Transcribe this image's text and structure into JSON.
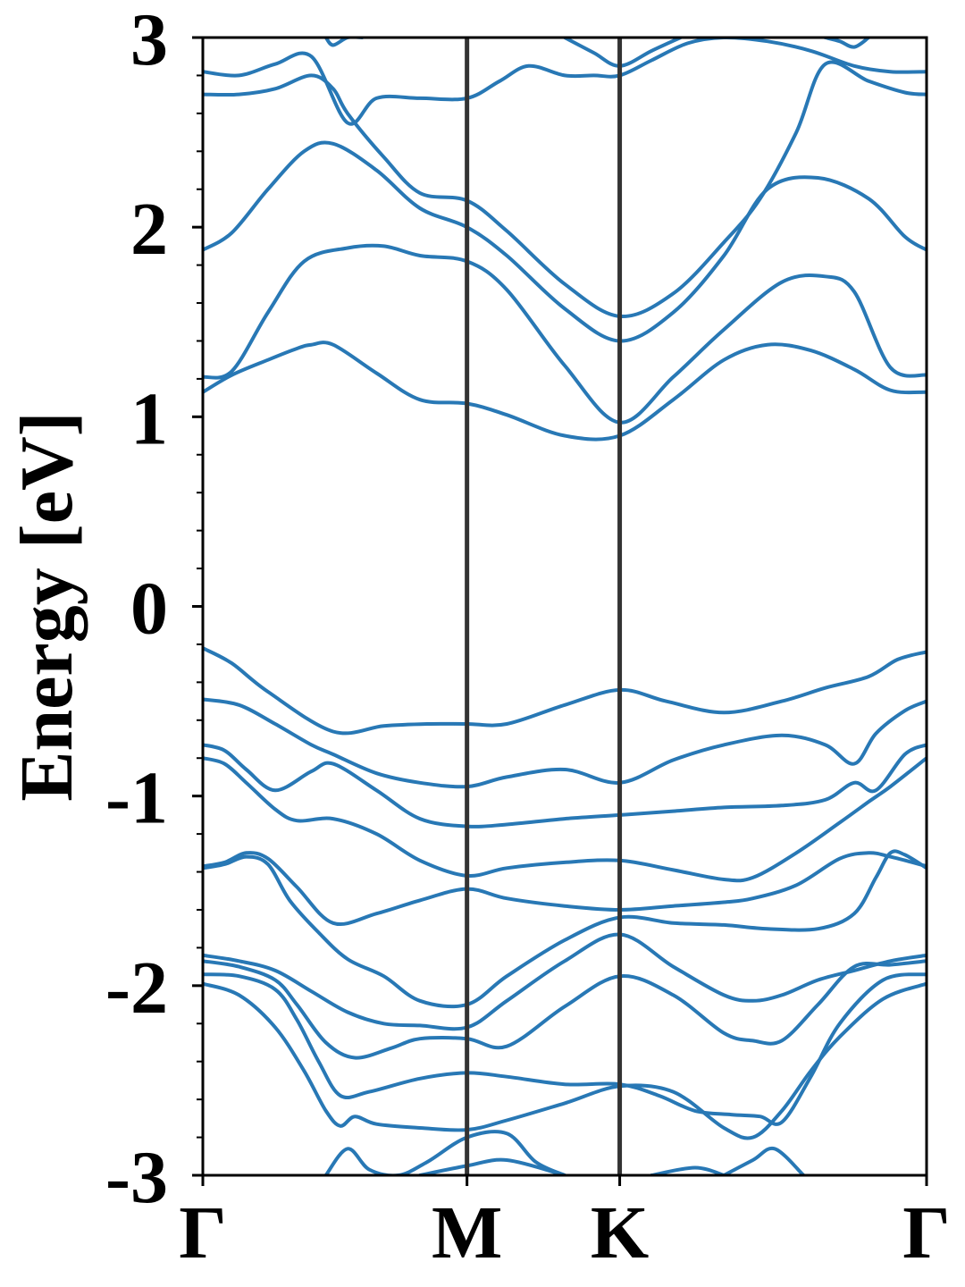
{
  "chart_data": {
    "type": "line",
    "title": "",
    "xlabel": "",
    "ylabel": "Energy [eV]",
    "ylim": [
      -3,
      3
    ],
    "yticks": [
      -3,
      -2,
      -1,
      0,
      1,
      2,
      3
    ],
    "minor_tick_step": 0.2,
    "x_range": [
      0,
      1
    ],
    "kpoints": [
      {
        "label": "Γ",
        "x": 0.0
      },
      {
        "label": "M",
        "x": 0.365
      },
      {
        "label": "K",
        "x": 0.576
      },
      {
        "label": "Γ",
        "x": 1.0
      }
    ],
    "grid": false,
    "legend": "none",
    "band_color": "#2878b5",
    "separator_color": "#333333",
    "series": [
      {
        "x": [
          0,
          0.04,
          0.09,
          0.18,
          0.25,
          0.31,
          0.365,
          0.42,
          0.5,
          0.576,
          0.64,
          0.72,
          0.8,
          0.86,
          0.92,
          0.96,
          1.0
        ],
        "values": [
          -0.22,
          -0.3,
          -0.45,
          -0.66,
          -0.63,
          -0.62,
          -0.62,
          -0.62,
          -0.52,
          -0.44,
          -0.5,
          -0.56,
          -0.5,
          -0.43,
          -0.37,
          -0.28,
          -0.24
        ]
      },
      {
        "x": [
          0,
          0.05,
          0.1,
          0.15,
          0.18,
          0.24,
          0.3,
          0.365,
          0.42,
          0.5,
          0.576,
          0.65,
          0.72,
          0.8,
          0.86,
          0.9,
          0.93,
          0.97,
          1.0
        ],
        "values": [
          -0.49,
          -0.52,
          -0.62,
          -0.73,
          -0.78,
          -0.88,
          -0.93,
          -0.95,
          -0.9,
          -0.86,
          -0.93,
          -0.81,
          -0.73,
          -0.68,
          -0.73,
          -0.83,
          -0.67,
          -0.55,
          -0.5
        ]
      },
      {
        "x": [
          0,
          0.03,
          0.06,
          0.1,
          0.15,
          0.18,
          0.24,
          0.3,
          0.365,
          0.42,
          0.5,
          0.576,
          0.65,
          0.72,
          0.8,
          0.86,
          0.9,
          0.93,
          0.97,
          1.0
        ],
        "values": [
          -0.73,
          -0.76,
          -0.86,
          -0.97,
          -0.87,
          -0.83,
          -0.97,
          -1.12,
          -1.16,
          -1.15,
          -1.12,
          -1.1,
          -1.08,
          -1.06,
          -1.05,
          -1.02,
          -0.93,
          -0.97,
          -0.78,
          -0.73
        ]
      },
      {
        "x": [
          0,
          0.03,
          0.06,
          0.1,
          0.13,
          0.18,
          0.24,
          0.3,
          0.365,
          0.42,
          0.5,
          0.576,
          0.65,
          0.72,
          0.76,
          0.82,
          0.88,
          0.92,
          0.95,
          1.0
        ],
        "values": [
          -0.8,
          -0.83,
          -0.93,
          -1.07,
          -1.13,
          -1.12,
          -1.2,
          -1.34,
          -1.42,
          -1.38,
          -1.35,
          -1.34,
          -1.39,
          -1.44,
          -1.43,
          -1.3,
          -1.14,
          -1.03,
          -0.95,
          -0.8
        ]
      },
      {
        "x": [
          0,
          0.03,
          0.06,
          0.09,
          0.13,
          0.18,
          0.24,
          0.3,
          0.365,
          0.42,
          0.5,
          0.576,
          0.65,
          0.72,
          0.76,
          0.82,
          0.88,
          0.92,
          0.95,
          1.0
        ],
        "values": [
          -1.37,
          -1.35,
          -1.3,
          -1.33,
          -1.48,
          -1.67,
          -1.62,
          -1.55,
          -1.49,
          -1.54,
          -1.58,
          -1.6,
          -1.58,
          -1.56,
          -1.54,
          -1.47,
          -1.33,
          -1.3,
          -1.32,
          -1.37
        ]
      },
      {
        "x": [
          0,
          0.03,
          0.06,
          0.09,
          0.12,
          0.16,
          0.2,
          0.25,
          0.3,
          0.365,
          0.42,
          0.5,
          0.576,
          0.65,
          0.72,
          0.78,
          0.85,
          0.9,
          0.93,
          0.95,
          0.97,
          1.0
        ],
        "values": [
          -1.38,
          -1.36,
          -1.32,
          -1.36,
          -1.55,
          -1.72,
          -1.86,
          -1.95,
          -2.08,
          -2.1,
          -1.95,
          -1.76,
          -1.64,
          -1.67,
          -1.68,
          -1.7,
          -1.7,
          -1.62,
          -1.43,
          -1.3,
          -1.31,
          -1.38
        ]
      },
      {
        "x": [
          0,
          0.05,
          0.1,
          0.15,
          0.2,
          0.25,
          0.3,
          0.365,
          0.42,
          0.5,
          0.576,
          0.65,
          0.72,
          0.76,
          0.8,
          0.85,
          0.9,
          0.95,
          1.0
        ],
        "values": [
          -1.84,
          -1.87,
          -1.92,
          -2.03,
          -2.14,
          -2.2,
          -2.21,
          -2.22,
          -2.08,
          -1.87,
          -1.73,
          -1.9,
          -2.05,
          -2.08,
          -2.05,
          -1.97,
          -1.92,
          -1.87,
          -1.84
        ]
      },
      {
        "x": [
          0,
          0.05,
          0.1,
          0.13,
          0.17,
          0.21,
          0.26,
          0.3,
          0.365,
          0.42,
          0.5,
          0.576,
          0.65,
          0.72,
          0.76,
          0.8,
          0.85,
          0.9,
          0.95,
          1.0
        ],
        "values": [
          -1.87,
          -1.9,
          -1.97,
          -2.1,
          -2.3,
          -2.38,
          -2.33,
          -2.28,
          -2.28,
          -2.32,
          -2.11,
          -1.95,
          -2.05,
          -2.25,
          -2.29,
          -2.29,
          -2.1,
          -1.9,
          -1.89,
          -1.87
        ]
      },
      {
        "x": [
          0,
          0.05,
          0.1,
          0.13,
          0.16,
          0.19,
          0.23,
          0.3,
          0.365,
          0.42,
          0.5,
          0.576,
          0.63,
          0.68,
          0.73,
          0.77,
          0.8,
          0.84,
          0.88,
          0.94,
          1.0
        ],
        "values": [
          -1.94,
          -1.95,
          -2.02,
          -2.18,
          -2.4,
          -2.58,
          -2.56,
          -2.49,
          -2.46,
          -2.48,
          -2.52,
          -2.52,
          -2.58,
          -2.66,
          -2.68,
          -2.69,
          -2.72,
          -2.48,
          -2.2,
          -1.97,
          -1.94
        ]
      },
      {
        "x": [
          0,
          0.05,
          0.1,
          0.14,
          0.17,
          0.19,
          0.21,
          0.24,
          0.3,
          0.365,
          0.42,
          0.5,
          0.576,
          0.65,
          0.72,
          0.76,
          0.8,
          0.84,
          0.88,
          0.94,
          1.0
        ],
        "values": [
          -1.99,
          -2.05,
          -2.22,
          -2.45,
          -2.66,
          -2.74,
          -2.69,
          -2.73,
          -2.75,
          -2.76,
          -2.71,
          -2.62,
          -2.53,
          -2.56,
          -2.75,
          -2.8,
          -2.66,
          -2.45,
          -2.27,
          -2.07,
          -1.99
        ]
      },
      {
        "x": [
          0.17,
          0.2,
          0.23,
          0.27,
          0.31,
          0.365,
          0.42,
          0.46,
          0.5
        ],
        "values": [
          -3.0,
          -2.86,
          -2.97,
          -3.0,
          -2.93,
          -2.8,
          -2.78,
          -2.93,
          -3.0
        ]
      },
      {
        "x": [
          0.3,
          0.365,
          0.42,
          0.5
        ],
        "values": [
          -3.0,
          -2.95,
          -2.92,
          -3.0
        ]
      },
      {
        "x": [
          0.62,
          0.68,
          0.72
        ],
        "values": [
          -3.0,
          -2.96,
          -3.0
        ]
      },
      {
        "x": [
          0.72,
          0.76,
          0.79,
          0.83
        ],
        "values": [
          -3.0,
          -2.92,
          -2.86,
          -3.0
        ]
      },
      {
        "x": [
          0,
          0.04,
          0.09,
          0.13,
          0.15,
          0.18,
          0.24,
          0.3,
          0.365,
          0.42,
          0.5,
          0.576,
          0.65,
          0.72,
          0.78,
          0.84,
          0.9,
          0.95,
          1.0
        ],
        "values": [
          1.13,
          1.22,
          1.3,
          1.36,
          1.38,
          1.38,
          1.23,
          1.09,
          1.07,
          1.01,
          0.9,
          0.9,
          1.09,
          1.3,
          1.38,
          1.35,
          1.25,
          1.14,
          1.13
        ]
      },
      {
        "x": [
          0,
          0.04,
          0.09,
          0.14,
          0.2,
          0.25,
          0.3,
          0.365,
          0.42,
          0.5,
          0.576,
          0.65,
          0.72,
          0.8,
          0.86,
          0.9,
          0.95,
          1.0
        ],
        "values": [
          1.21,
          1.24,
          1.55,
          1.82,
          1.89,
          1.9,
          1.85,
          1.82,
          1.67,
          1.27,
          0.97,
          1.21,
          1.46,
          1.71,
          1.74,
          1.66,
          1.26,
          1.22
        ]
      },
      {
        "x": [
          0,
          0.04,
          0.09,
          0.14,
          0.18,
          0.24,
          0.3,
          0.365,
          0.42,
          0.5,
          0.576,
          0.65,
          0.72,
          0.78,
          0.85,
          0.92,
          0.97,
          1.0
        ],
        "values": [
          1.88,
          1.97,
          2.2,
          2.4,
          2.44,
          2.3,
          2.1,
          2.0,
          1.85,
          1.57,
          1.4,
          1.55,
          1.85,
          2.2,
          2.26,
          2.15,
          1.95,
          1.88
        ]
      },
      {
        "x": [
          0,
          0.05,
          0.1,
          0.15,
          0.18,
          0.2,
          0.25,
          0.3,
          0.365,
          0.42,
          0.5,
          0.576,
          0.65,
          0.72,
          0.77,
          0.82,
          0.86,
          0.92,
          0.97,
          1.0
        ],
        "values": [
          2.7,
          2.7,
          2.73,
          2.8,
          2.73,
          2.6,
          2.37,
          2.18,
          2.14,
          1.98,
          1.7,
          1.53,
          1.65,
          1.92,
          2.15,
          2.5,
          2.86,
          2.77,
          2.71,
          2.7
        ]
      },
      {
        "x": [
          0,
          0.05,
          0.1,
          0.15,
          0.2,
          0.24,
          0.3,
          0.365,
          0.41,
          0.45,
          0.5,
          0.54,
          0.576,
          0.62,
          0.67,
          0.72,
          0.78,
          0.84,
          0.9,
          0.95,
          1.0
        ],
        "values": [
          2.82,
          2.8,
          2.86,
          2.9,
          2.55,
          2.68,
          2.68,
          2.68,
          2.77,
          2.85,
          2.8,
          2.8,
          2.8,
          2.88,
          2.97,
          3.0,
          2.98,
          2.93,
          2.85,
          2.82,
          2.82
        ]
      },
      {
        "x": [
          0.17,
          0.18,
          0.2,
          0.22
        ],
        "values": [
          3.0,
          2.96,
          3.0,
          3.0
        ]
      },
      {
        "x": [
          0.5,
          0.54,
          0.576,
          0.62,
          0.66
        ],
        "values": [
          3.0,
          2.92,
          2.85,
          2.93,
          3.0
        ]
      },
      {
        "x": [
          0.86,
          0.88,
          0.9,
          0.92
        ],
        "values": [
          3.0,
          2.98,
          2.95,
          3.0
        ]
      }
    ]
  }
}
